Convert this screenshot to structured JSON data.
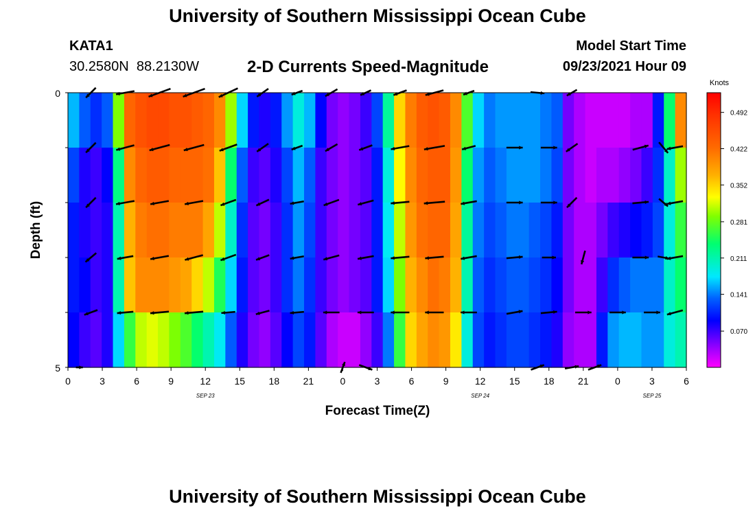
{
  "page": {
    "title_top": "University of Southern Mississippi Ocean Cube",
    "title_bottom": "University of Southern Mississippi Ocean Cube"
  },
  "station": {
    "id": "KATA1",
    "coords": "30.2580N  88.2130W"
  },
  "model": {
    "label": "Model Start Time",
    "time": "09/23/2021 Hour 09"
  },
  "chart_data": {
    "type": "heatmap",
    "title": "2-D Currents Speed-Magnitude",
    "xlabel": "Forecast Time(Z)",
    "ylabel": "Depth (ft)",
    "ylim": [
      0,
      5
    ],
    "y_ticks": [
      "0",
      "5"
    ],
    "x_ticks": [
      "0",
      "3",
      "6",
      "9",
      "12",
      "15",
      "18",
      "21",
      "0",
      "3",
      "6",
      "9",
      "12",
      "15",
      "18",
      "21",
      "0",
      "3",
      "6"
    ],
    "x_range_hours": [
      0,
      54
    ],
    "date_labels": [
      {
        "text": "SEP 23",
        "hour": 12
      },
      {
        "text": "SEP 24",
        "hour": 36
      },
      {
        "text": "SEP 25",
        "hour": 51
      }
    ],
    "colorbar": {
      "title": "Knots",
      "min": 0.0,
      "max": 0.53,
      "ticks": [
        "0.492",
        "0.422",
        "0.352",
        "0.281",
        "0.211",
        "0.141",
        "0.070"
      ]
    },
    "depth_bands": 5,
    "columns": [
      {
        "hour": 0,
        "speeds": [
          0.16,
          0.12,
          0.1,
          0.1,
          0.09
        ]
      },
      {
        "hour": 1,
        "speeds": [
          0.13,
          0.08,
          0.08,
          0.09,
          0.07
        ]
      },
      {
        "hour": 2,
        "speeds": [
          0.11,
          0.07,
          0.07,
          0.07,
          0.06
        ]
      },
      {
        "hour": 3,
        "speeds": [
          0.13,
          0.09,
          0.08,
          0.08,
          0.08
        ]
      },
      {
        "hour": 4,
        "speeds": [
          0.29,
          0.23,
          0.21,
          0.21,
          0.17
        ]
      },
      {
        "hour": 5,
        "speeds": [
          0.43,
          0.4,
          0.37,
          0.36,
          0.26
        ]
      },
      {
        "hour": 6,
        "speeds": [
          0.45,
          0.43,
          0.41,
          0.4,
          0.31
        ]
      },
      {
        "hour": 7,
        "speeds": [
          0.46,
          0.44,
          0.42,
          0.4,
          0.32
        ]
      },
      {
        "hour": 8,
        "speeds": [
          0.46,
          0.44,
          0.42,
          0.4,
          0.31
        ]
      },
      {
        "hour": 9,
        "speeds": [
          0.45,
          0.43,
          0.41,
          0.39,
          0.29
        ]
      },
      {
        "hour": 10,
        "speeds": [
          0.45,
          0.43,
          0.41,
          0.38,
          0.27
        ]
      },
      {
        "hour": 11,
        "speeds": [
          0.44,
          0.43,
          0.41,
          0.35,
          0.24
        ]
      },
      {
        "hour": 12,
        "speeds": [
          0.43,
          0.42,
          0.38,
          0.31,
          0.21
        ]
      },
      {
        "hour": 13,
        "speeds": [
          0.4,
          0.36,
          0.31,
          0.25,
          0.18
        ]
      },
      {
        "hour": 14,
        "speeds": [
          0.3,
          0.24,
          0.2,
          0.17,
          0.13
        ]
      },
      {
        "hour": 15,
        "speeds": [
          0.17,
          0.13,
          0.11,
          0.1,
          0.08
        ]
      },
      {
        "hour": 16,
        "speeds": [
          0.1,
          0.07,
          0.06,
          0.06,
          0.05
        ]
      },
      {
        "hour": 17,
        "speeds": [
          0.08,
          0.06,
          0.05,
          0.05,
          0.04
        ]
      },
      {
        "hour": 18,
        "speeds": [
          0.1,
          0.08,
          0.07,
          0.07,
          0.06
        ]
      },
      {
        "hour": 19,
        "speeds": [
          0.15,
          0.12,
          0.11,
          0.11,
          0.09
        ]
      },
      {
        "hour": 20,
        "speeds": [
          0.19,
          0.16,
          0.15,
          0.14,
          0.12
        ]
      },
      {
        "hour": 21,
        "speeds": [
          0.16,
          0.13,
          0.12,
          0.11,
          0.1
        ]
      },
      {
        "hour": 22,
        "speeds": [
          0.09,
          0.07,
          0.07,
          0.07,
          0.06
        ]
      },
      {
        "hour": 23,
        "speeds": [
          0.05,
          0.05,
          0.05,
          0.05,
          0.03
        ]
      },
      {
        "hour": 24,
        "speeds": [
          0.04,
          0.04,
          0.04,
          0.04,
          0.02
        ]
      },
      {
        "hour": 25,
        "speeds": [
          0.05,
          0.05,
          0.05,
          0.05,
          0.02
        ]
      },
      {
        "hour": 26,
        "speeds": [
          0.07,
          0.06,
          0.06,
          0.06,
          0.04
        ]
      },
      {
        "hour": 27,
        "speeds": [
          0.12,
          0.1,
          0.1,
          0.1,
          0.07
        ]
      },
      {
        "hour": 28,
        "speeds": [
          0.22,
          0.19,
          0.18,
          0.17,
          0.14
        ]
      },
      {
        "hour": 29,
        "speeds": [
          0.35,
          0.33,
          0.31,
          0.29,
          0.26
        ]
      },
      {
        "hour": 30,
        "speeds": [
          0.41,
          0.4,
          0.39,
          0.37,
          0.35
        ]
      },
      {
        "hour": 31,
        "speeds": [
          0.44,
          0.43,
          0.42,
          0.4,
          0.38
        ]
      },
      {
        "hour": 32,
        "speeds": [
          0.45,
          0.44,
          0.43,
          0.42,
          0.4
        ]
      },
      {
        "hour": 33,
        "speeds": [
          0.44,
          0.44,
          0.43,
          0.41,
          0.39
        ]
      },
      {
        "hour": 34,
        "speeds": [
          0.4,
          0.39,
          0.38,
          0.37,
          0.34
        ]
      },
      {
        "hour": 35,
        "speeds": [
          0.27,
          0.24,
          0.22,
          0.21,
          0.19
        ]
      },
      {
        "hour": 36,
        "speeds": [
          0.17,
          0.15,
          0.14,
          0.13,
          0.12
        ]
      },
      {
        "hour": 37,
        "speeds": [
          0.14,
          0.13,
          0.12,
          0.11,
          0.1
        ]
      },
      {
        "hour": 38,
        "speeds": [
          0.15,
          0.14,
          0.13,
          0.12,
          0.11
        ]
      },
      {
        "hour": 39,
        "speeds": [
          0.15,
          0.15,
          0.14,
          0.13,
          0.12
        ]
      },
      {
        "hour": 40,
        "speeds": [
          0.15,
          0.15,
          0.14,
          0.13,
          0.12
        ]
      },
      {
        "hour": 41,
        "speeds": [
          0.15,
          0.15,
          0.13,
          0.12,
          0.11
        ]
      },
      {
        "hour": 42,
        "speeds": [
          0.14,
          0.14,
          0.12,
          0.11,
          0.1
        ]
      },
      {
        "hour": 43,
        "speeds": [
          0.13,
          0.12,
          0.1,
          0.09,
          0.08
        ]
      },
      {
        "hour": 44,
        "speeds": [
          0.05,
          0.05,
          0.05,
          0.05,
          0.04
        ]
      },
      {
        "hour": 45,
        "speeds": [
          0.03,
          0.03,
          0.03,
          0.03,
          0.03
        ]
      },
      {
        "hour": 46,
        "speeds": [
          0.02,
          0.02,
          0.03,
          0.03,
          0.03
        ]
      },
      {
        "hour": 47,
        "speeds": [
          0.02,
          0.03,
          0.05,
          0.07,
          0.1
        ]
      },
      {
        "hour": 48,
        "speeds": [
          0.02,
          0.03,
          0.07,
          0.11,
          0.15
        ]
      },
      {
        "hour": 49,
        "speeds": [
          0.02,
          0.04,
          0.08,
          0.13,
          0.16
        ]
      },
      {
        "hour": 50,
        "speeds": [
          0.03,
          0.05,
          0.09,
          0.14,
          0.16
        ]
      },
      {
        "hour": 51,
        "speeds": [
          0.03,
          0.07,
          0.1,
          0.14,
          0.15
        ]
      },
      {
        "hour": 52,
        "speeds": [
          0.1,
          0.11,
          0.12,
          0.14,
          0.15
        ]
      },
      {
        "hour": 53,
        "speeds": [
          0.24,
          0.2,
          0.19,
          0.2,
          0.19
        ]
      },
      {
        "hour": 54,
        "speeds": [
          0.4,
          0.3,
          0.26,
          0.24,
          0.21
        ]
      }
    ],
    "vectors": [
      {
        "hour": 2,
        "depth": 0,
        "dir": 225,
        "mag": 0.6
      },
      {
        "hour": 5,
        "depth": 0,
        "dir": 190,
        "mag": 0.8
      },
      {
        "hour": 8,
        "depth": 0,
        "dir": 200,
        "mag": 1.0
      },
      {
        "hour": 11,
        "depth": 0,
        "dir": 200,
        "mag": 1.0
      },
      {
        "hour": 14,
        "depth": 0,
        "dir": 205,
        "mag": 0.9
      },
      {
        "hour": 17,
        "depth": 0,
        "dir": 215,
        "mag": 0.6
      },
      {
        "hour": 20,
        "depth": 0,
        "dir": 200,
        "mag": 0.5
      },
      {
        "hour": 23,
        "depth": 0,
        "dir": 210,
        "mag": 0.6
      },
      {
        "hour": 26,
        "depth": 0,
        "dir": 205,
        "mag": 0.5
      },
      {
        "hour": 29,
        "depth": 0,
        "dir": 200,
        "mag": 0.6
      },
      {
        "hour": 32,
        "depth": 0,
        "dir": 195,
        "mag": 0.8
      },
      {
        "hour": 35,
        "depth": 0,
        "dir": 200,
        "mag": 0.5
      },
      {
        "hour": 41,
        "depth": 0,
        "dir": 355,
        "mag": 0.6
      },
      {
        "hour": 44,
        "depth": 0,
        "dir": 210,
        "mag": 0.5
      },
      {
        "hour": 2,
        "depth": 1,
        "dir": 225,
        "mag": 0.6
      },
      {
        "hour": 5,
        "depth": 1,
        "dir": 195,
        "mag": 0.8
      },
      {
        "hour": 8,
        "depth": 1,
        "dir": 195,
        "mag": 0.9
      },
      {
        "hour": 11,
        "depth": 1,
        "dir": 195,
        "mag": 0.9
      },
      {
        "hour": 14,
        "depth": 1,
        "dir": 200,
        "mag": 0.8
      },
      {
        "hour": 17,
        "depth": 1,
        "dir": 215,
        "mag": 0.6
      },
      {
        "hour": 20,
        "depth": 1,
        "dir": 200,
        "mag": 0.5
      },
      {
        "hour": 23,
        "depth": 1,
        "dir": 210,
        "mag": 0.6
      },
      {
        "hour": 26,
        "depth": 1,
        "dir": 200,
        "mag": 0.6
      },
      {
        "hour": 29,
        "depth": 1,
        "dir": 190,
        "mag": 0.8
      },
      {
        "hour": 32,
        "depth": 1,
        "dir": 190,
        "mag": 0.9
      },
      {
        "hour": 35,
        "depth": 1,
        "dir": 195,
        "mag": 0.6
      },
      {
        "hour": 39,
        "depth": 1,
        "dir": 0,
        "mag": 0.7
      },
      {
        "hour": 42,
        "depth": 1,
        "dir": 0,
        "mag": 0.7
      },
      {
        "hour": 44,
        "depth": 1,
        "dir": 215,
        "mag": 0.6
      },
      {
        "hour": 50,
        "depth": 1,
        "dir": 15,
        "mag": 0.7
      },
      {
        "hour": 52,
        "depth": 1,
        "dir": 310,
        "mag": 0.6
      },
      {
        "hour": 53,
        "depth": 1,
        "dir": 190,
        "mag": 0.7
      },
      {
        "hour": 2,
        "depth": 2,
        "dir": 225,
        "mag": 0.6
      },
      {
        "hour": 5,
        "depth": 2,
        "dir": 190,
        "mag": 0.8
      },
      {
        "hour": 8,
        "depth": 2,
        "dir": 190,
        "mag": 0.8
      },
      {
        "hour": 11,
        "depth": 2,
        "dir": 190,
        "mag": 0.8
      },
      {
        "hour": 14,
        "depth": 2,
        "dir": 200,
        "mag": 0.7
      },
      {
        "hour": 17,
        "depth": 2,
        "dir": 205,
        "mag": 0.6
      },
      {
        "hour": 20,
        "depth": 2,
        "dir": 190,
        "mag": 0.6
      },
      {
        "hour": 23,
        "depth": 2,
        "dir": 200,
        "mag": 0.7
      },
      {
        "hour": 26,
        "depth": 2,
        "dir": 195,
        "mag": 0.7
      },
      {
        "hour": 29,
        "depth": 2,
        "dir": 185,
        "mag": 0.8
      },
      {
        "hour": 32,
        "depth": 2,
        "dir": 185,
        "mag": 0.9
      },
      {
        "hour": 35,
        "depth": 2,
        "dir": 190,
        "mag": 0.7
      },
      {
        "hour": 39,
        "depth": 2,
        "dir": 0,
        "mag": 0.7
      },
      {
        "hour": 42,
        "depth": 2,
        "dir": 0,
        "mag": 0.7
      },
      {
        "hour": 44,
        "depth": 2,
        "dir": 225,
        "mag": 0.6
      },
      {
        "hour": 50,
        "depth": 2,
        "dir": 5,
        "mag": 0.7
      },
      {
        "hour": 52,
        "depth": 2,
        "dir": 320,
        "mag": 0.5
      },
      {
        "hour": 53,
        "depth": 2,
        "dir": 190,
        "mag": 0.7
      },
      {
        "hour": 2,
        "depth": 3,
        "dir": 220,
        "mag": 0.6
      },
      {
        "hour": 5,
        "depth": 3,
        "dir": 190,
        "mag": 0.7
      },
      {
        "hour": 8,
        "depth": 3,
        "dir": 190,
        "mag": 0.8
      },
      {
        "hour": 11,
        "depth": 3,
        "dir": 195,
        "mag": 0.8
      },
      {
        "hour": 14,
        "depth": 3,
        "dir": 200,
        "mag": 0.7
      },
      {
        "hour": 17,
        "depth": 3,
        "dir": 200,
        "mag": 0.6
      },
      {
        "hour": 20,
        "depth": 3,
        "dir": 190,
        "mag": 0.6
      },
      {
        "hour": 23,
        "depth": 3,
        "dir": 195,
        "mag": 0.7
      },
      {
        "hour": 26,
        "depth": 3,
        "dir": 190,
        "mag": 0.7
      },
      {
        "hour": 29,
        "depth": 3,
        "dir": 185,
        "mag": 0.8
      },
      {
        "hour": 32,
        "depth": 3,
        "dir": 185,
        "mag": 0.8
      },
      {
        "hour": 35,
        "depth": 3,
        "dir": 190,
        "mag": 0.7
      },
      {
        "hour": 39,
        "depth": 3,
        "dir": 5,
        "mag": 0.7
      },
      {
        "hour": 42,
        "depth": 3,
        "dir": 0,
        "mag": 0.6
      },
      {
        "hour": 45,
        "depth": 3,
        "dir": 255,
        "mag": 0.6
      },
      {
        "hour": 50,
        "depth": 3,
        "dir": 0,
        "mag": 0.7
      },
      {
        "hour": 52,
        "depth": 3,
        "dir": 350,
        "mag": 0.5
      },
      {
        "hour": 53,
        "depth": 3,
        "dir": 190,
        "mag": 0.7
      },
      {
        "hour": 2,
        "depth": 4,
        "dir": 200,
        "mag": 0.6
      },
      {
        "hour": 5,
        "depth": 4,
        "dir": 185,
        "mag": 0.7
      },
      {
        "hour": 8,
        "depth": 4,
        "dir": 185,
        "mag": 0.8
      },
      {
        "hour": 11,
        "depth": 4,
        "dir": 185,
        "mag": 0.8
      },
      {
        "hour": 14,
        "depth": 4,
        "dir": 185,
        "mag": 0.6
      },
      {
        "hour": 17,
        "depth": 4,
        "dir": 195,
        "mag": 0.6
      },
      {
        "hour": 20,
        "depth": 4,
        "dir": 185,
        "mag": 0.6
      },
      {
        "hour": 23,
        "depth": 4,
        "dir": 180,
        "mag": 0.7
      },
      {
        "hour": 26,
        "depth": 4,
        "dir": 180,
        "mag": 0.7
      },
      {
        "hour": 29,
        "depth": 4,
        "dir": 180,
        "mag": 0.8
      },
      {
        "hour": 32,
        "depth": 4,
        "dir": 180,
        "mag": 0.8
      },
      {
        "hour": 35,
        "depth": 4,
        "dir": 180,
        "mag": 0.7
      },
      {
        "hour": 39,
        "depth": 4,
        "dir": 10,
        "mag": 0.7
      },
      {
        "hour": 42,
        "depth": 4,
        "dir": 5,
        "mag": 0.7
      },
      {
        "hour": 45,
        "depth": 4,
        "dir": 0,
        "mag": 0.7
      },
      {
        "hour": 48,
        "depth": 4,
        "dir": 0,
        "mag": 0.7
      },
      {
        "hour": 51,
        "depth": 4,
        "dir": 0,
        "mag": 0.7
      },
      {
        "hour": 53,
        "depth": 4,
        "dir": 195,
        "mag": 0.7
      },
      {
        "hour": 1,
        "depth": 5,
        "dir": 0,
        "mag": 0.3
      },
      {
        "hour": 24,
        "depth": 5,
        "dir": 70,
        "mag": 0.5
      },
      {
        "hour": 26,
        "depth": 5,
        "dir": 340,
        "mag": 0.6
      },
      {
        "hour": 41,
        "depth": 5,
        "dir": 20,
        "mag": 0.6
      },
      {
        "hour": 44,
        "depth": 5,
        "dir": 10,
        "mag": 0.6
      },
      {
        "hour": 46,
        "depth": 5,
        "dir": 20,
        "mag": 0.6
      }
    ]
  }
}
